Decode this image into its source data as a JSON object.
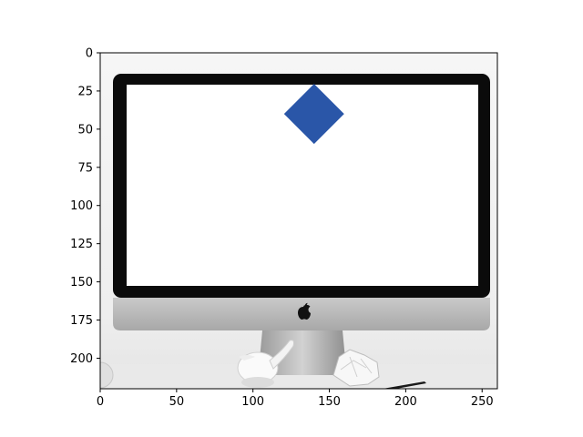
{
  "chart_data": {
    "type": "scatter",
    "title": "",
    "xlabel": "",
    "ylabel": "",
    "xlim": [
      0,
      260
    ],
    "ylim": [
      220,
      0
    ],
    "y_inverted": true,
    "x_ticks": [
      0,
      50,
      100,
      150,
      200,
      250
    ],
    "y_ticks": [
      0,
      25,
      50,
      75,
      100,
      125,
      150,
      175,
      200
    ],
    "x_tick_labels": [
      "0",
      "50",
      "100",
      "150",
      "200",
      "250"
    ],
    "y_tick_labels": [
      "0",
      "25",
      "50",
      "75",
      "100",
      "125",
      "150",
      "175",
      "200"
    ],
    "grid": false,
    "background_image": "grayscale photo of an iMac desktop computer with a blank white screen on a desk with a small bird figurine and crumpled paper",
    "points": [
      {
        "x": 140,
        "y": 40,
        "marker": "diamond",
        "color": "#2a56a8"
      }
    ]
  },
  "colors": {
    "marker": "#2a56a8",
    "axes": "#000000"
  },
  "icons": {
    "brand_logo": "apple-logo-icon"
  }
}
